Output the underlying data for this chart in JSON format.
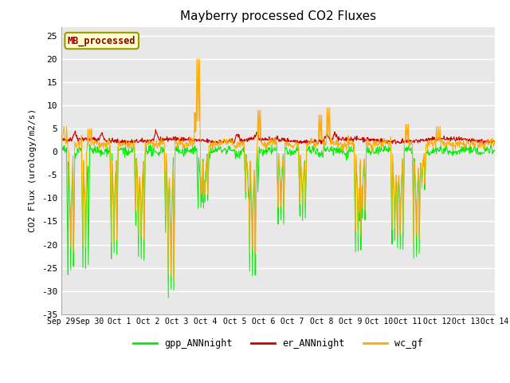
{
  "title": "Mayberry processed CO2 Fluxes",
  "ylabel": "CO2 Flux (urology/m2/s)",
  "ylim": [
    -35,
    27
  ],
  "yticks": [
    -35,
    -30,
    -25,
    -20,
    -15,
    -10,
    -5,
    0,
    5,
    10,
    15,
    20,
    25
  ],
  "xlabel_ticks": [
    "Sep 29",
    "Sep 30",
    "Oct 1",
    "Oct 2",
    "Oct 3",
    "Oct 4",
    "Oct 5",
    "Oct 6",
    "Oct 7",
    "Oct 8",
    "Oct 9",
    "Oct 10",
    "Oct 11",
    "Oct 12",
    "Oct 13",
    "Oct 14"
  ],
  "legend_label": "MB_processed",
  "legend_labels": [
    "gpp_ANNnight",
    "er_ANNnight",
    "wc_gf"
  ],
  "line_colors": [
    "#00ee00",
    "#cc0000",
    "#ffaa00"
  ],
  "bg_color": "#e8e8e8",
  "fig_bg": "#ffffff",
  "n_points": 960,
  "seed": 42
}
